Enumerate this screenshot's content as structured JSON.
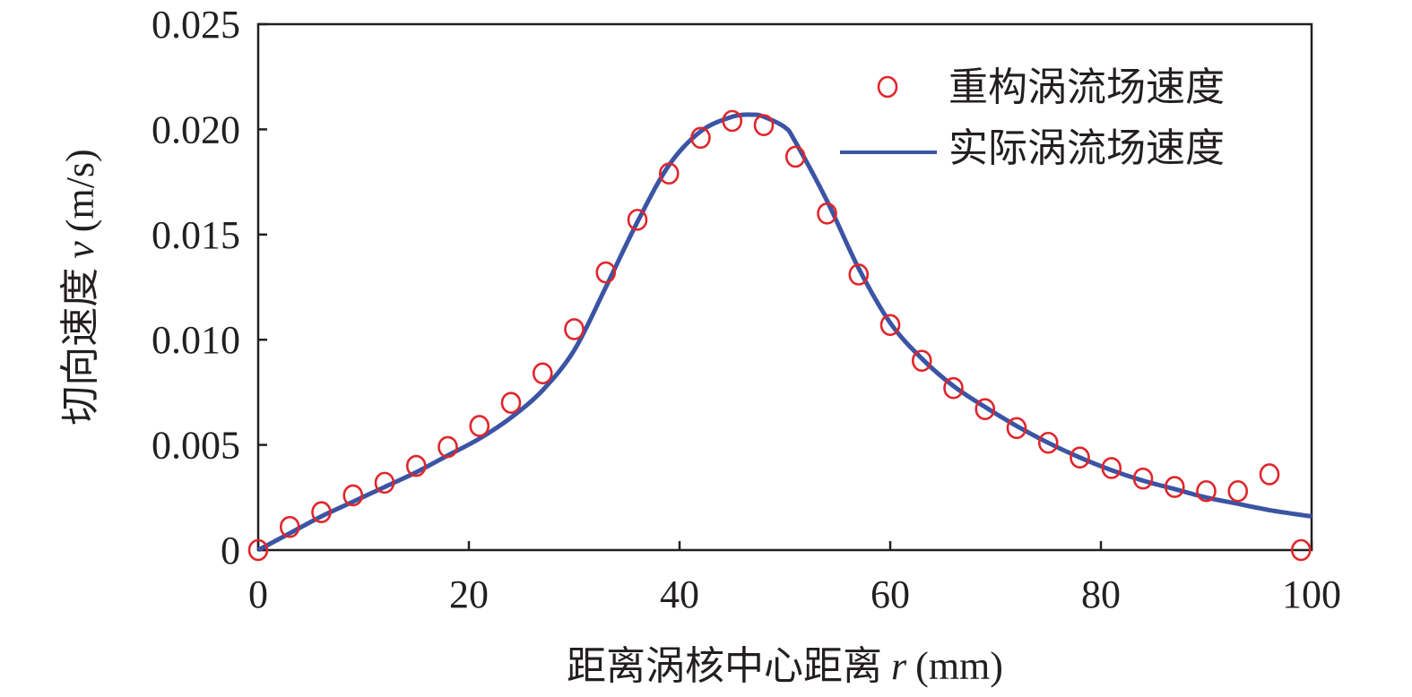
{
  "chart_data": {
    "type": "line",
    "title": "",
    "xlabel": {
      "prefix": "距离涡核中心距离",
      "var": "r",
      "unit": "(mm)"
    },
    "ylabel": {
      "prefix": "切向速度",
      "var": "v",
      "unit": "(m/s)"
    },
    "xlim": [
      0,
      100
    ],
    "ylim": [
      0,
      0.025
    ],
    "xticks": [
      0,
      20,
      40,
      60,
      80,
      100
    ],
    "xtick_labels": [
      "0",
      "20",
      "40",
      "60",
      "80",
      "100"
    ],
    "yticks": [
      0,
      0.005,
      0.01,
      0.015,
      0.02,
      0.025
    ],
    "ytick_labels": [
      "0",
      "0.005",
      "0.010",
      "0.015",
      "0.020",
      "0.025"
    ],
    "grid": false,
    "legend_position": "top-right",
    "series": [
      {
        "name": "重构涡流场速度",
        "kind": "scatter",
        "color": "#e0262b",
        "x": [
          0,
          3,
          6,
          9,
          12,
          15,
          18,
          21,
          24,
          27,
          30,
          33,
          36,
          39,
          42,
          45,
          48,
          51,
          54,
          57,
          60,
          63,
          66,
          69,
          72,
          75,
          78,
          81,
          84,
          87,
          90,
          93,
          96,
          99
        ],
        "y": [
          0.0,
          0.0011,
          0.0018,
          0.0026,
          0.0032,
          0.004,
          0.0049,
          0.0059,
          0.007,
          0.0084,
          0.0105,
          0.0132,
          0.0157,
          0.0179,
          0.0196,
          0.0204,
          0.0202,
          0.0187,
          0.016,
          0.0131,
          0.0107,
          0.009,
          0.0077,
          0.0067,
          0.0058,
          0.0051,
          0.0044,
          0.0039,
          0.0034,
          0.003,
          0.0028,
          0.0028,
          0.0036,
          0.0
        ]
      },
      {
        "name": "实际涡流场速度",
        "kind": "line",
        "color": "#3b54a4",
        "x": [
          0,
          3,
          6,
          9,
          12,
          15,
          18,
          21,
          24,
          27,
          30,
          33,
          36,
          39,
          42,
          45,
          47,
          48,
          50,
          51,
          54,
          57,
          60,
          63,
          66,
          69,
          72,
          75,
          78,
          81,
          84,
          87,
          90,
          93,
          96,
          100
        ],
        "y": [
          0.0,
          0.0008,
          0.0016,
          0.0023,
          0.003,
          0.0037,
          0.0045,
          0.0053,
          0.0063,
          0.0076,
          0.0095,
          0.0125,
          0.0156,
          0.0183,
          0.0199,
          0.0206,
          0.0207,
          0.0206,
          0.0201,
          0.0194,
          0.0166,
          0.0134,
          0.0108,
          0.0091,
          0.0078,
          0.0068,
          0.0059,
          0.0051,
          0.0044,
          0.0038,
          0.0033,
          0.0029,
          0.0025,
          0.0022,
          0.0019,
          0.0016
        ]
      }
    ]
  }
}
